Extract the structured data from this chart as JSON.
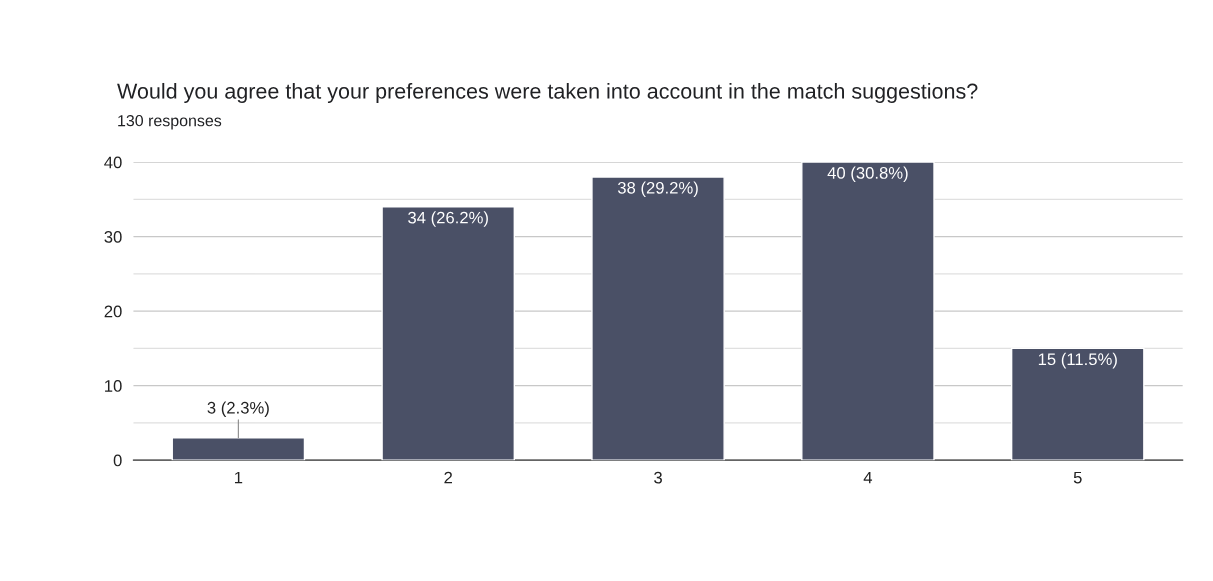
{
  "chart_data": {
    "type": "bar",
    "title": "Would you agree that your preferences were taken into account in the match suggestions?",
    "subtitle": "130 responses",
    "categories": [
      "1",
      "2",
      "3",
      "4",
      "5"
    ],
    "values": [
      3,
      34,
      38,
      40,
      15
    ],
    "value_labels": [
      "3 (2.3%)",
      "34 (26.2%)",
      "38 (29.2%)",
      "40 (30.8%)",
      "15 (11.5%)"
    ],
    "color": "#4a5066",
    "ylim": [
      0,
      40
    ],
    "yticks": [
      0,
      {
        "value": 5,
        "label": null
      },
      10,
      {
        "value": 15,
        "label": null
      },
      20,
      {
        "value": 25,
        "label": null
      },
      30,
      {
        "value": 35,
        "label": null
      },
      40
    ],
    "grid": "y",
    "legend": false
  }
}
